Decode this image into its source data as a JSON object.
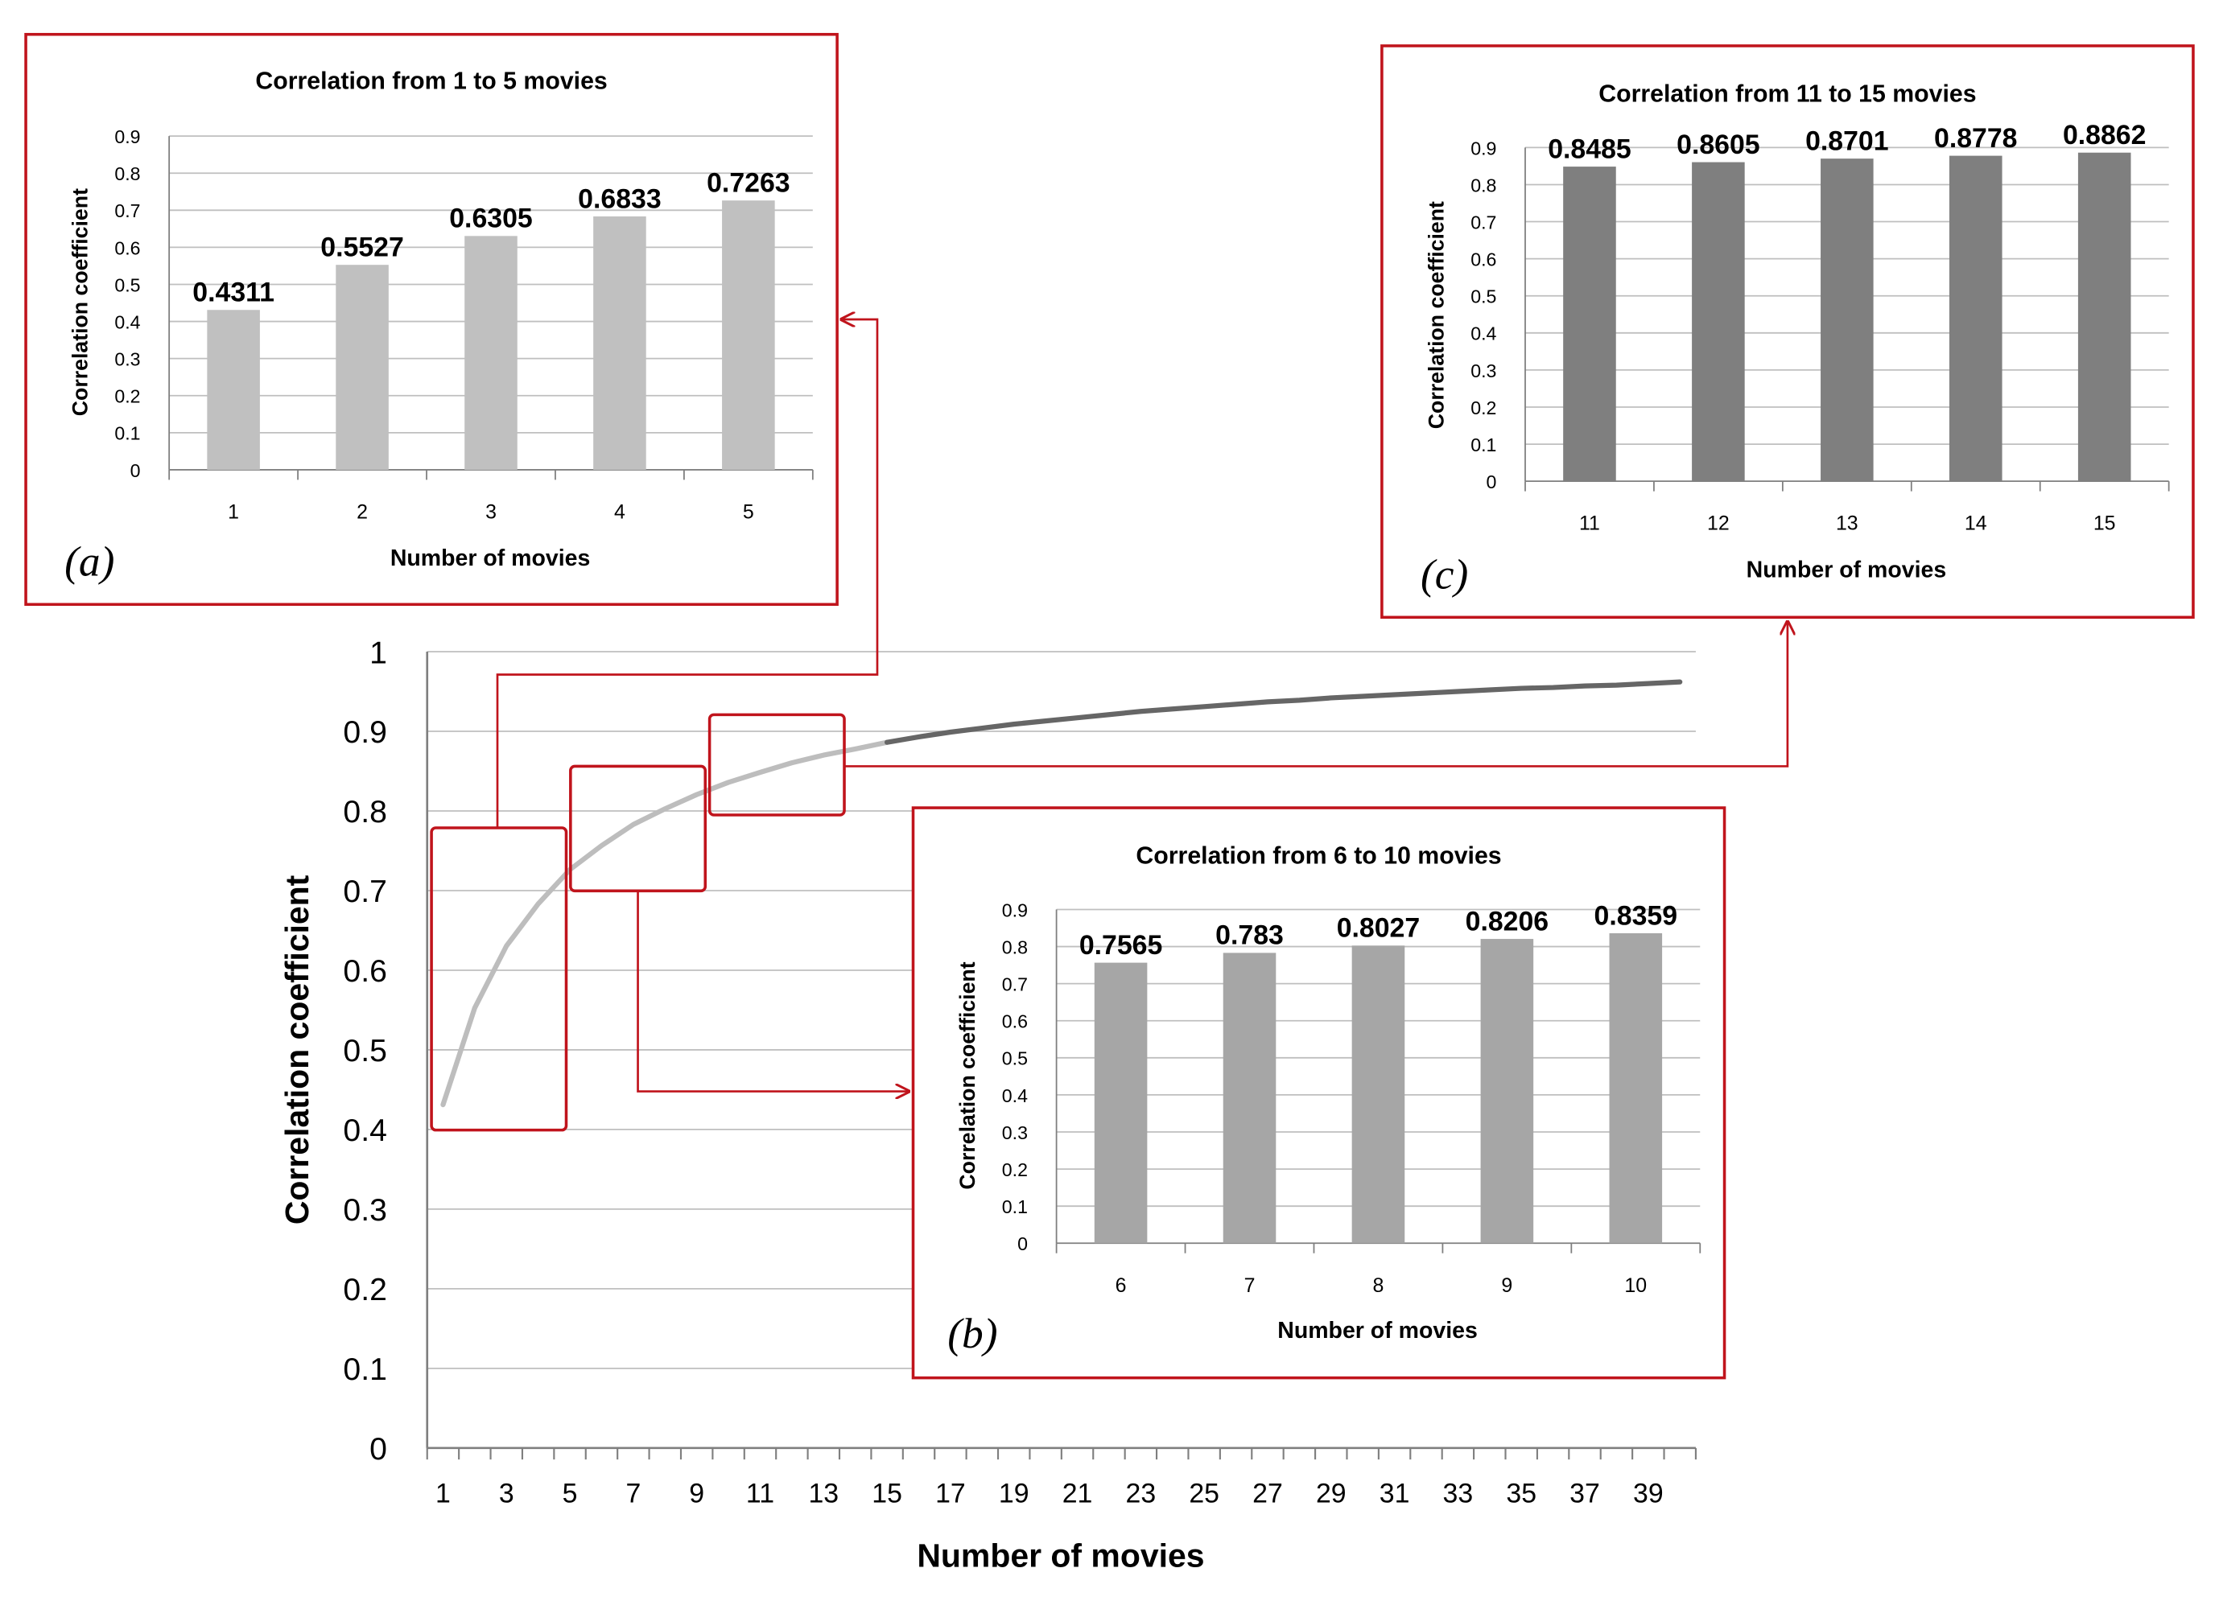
{
  "colors": {
    "frame": "#c0141c",
    "grid": "#bfbfbf",
    "axis": "#7f7f7f",
    "curve_light": "#bdbdbd",
    "curve_dark": "#666666",
    "bar_a": "#c0c0c0",
    "bar_b": "#a6a6a6",
    "bar_c": "#7f7f7f",
    "text": "#000000"
  },
  "chart_data": [
    {
      "id": "main",
      "type": "line",
      "title": "",
      "xlabel": "Number of movies",
      "ylabel": "Correlation coefficient",
      "xlim": [
        1,
        40
      ],
      "ylim": [
        0,
        1
      ],
      "yticks": [
        "0",
        "0.1",
        "0.2",
        "0.3",
        "0.4",
        "0.5",
        "0.6",
        "0.7",
        "0.8",
        "0.9",
        "1"
      ],
      "xtick_labels": [
        "1",
        "3",
        "5",
        "7",
        "9",
        "11",
        "13",
        "15",
        "17",
        "19",
        "21",
        "23",
        "25",
        "27",
        "29",
        "31",
        "33",
        "35",
        "37",
        "39"
      ],
      "series": [
        {
          "name": "Correlation coefficient",
          "x": [
            1,
            2,
            3,
            4,
            5,
            6,
            7,
            8,
            9,
            10,
            11,
            12,
            13,
            14,
            15,
            16,
            17,
            18,
            19,
            20,
            21,
            22,
            23,
            24,
            25,
            26,
            27,
            28,
            29,
            30,
            31,
            32,
            33,
            34,
            35,
            36,
            37,
            38,
            39,
            40
          ],
          "values": [
            0.4311,
            0.5527,
            0.6305,
            0.6833,
            0.7263,
            0.7565,
            0.783,
            0.8027,
            0.8206,
            0.8359,
            0.8485,
            0.8605,
            0.8701,
            0.8778,
            0.8862,
            0.893,
            0.899,
            0.904,
            0.909,
            0.913,
            0.917,
            0.921,
            0.925,
            0.928,
            0.931,
            0.934,
            0.937,
            0.939,
            0.942,
            0.944,
            0.946,
            0.948,
            0.95,
            0.952,
            0.954,
            0.955,
            0.957,
            0.958,
            0.96,
            0.962
          ]
        }
      ]
    },
    {
      "id": "a",
      "type": "bar",
      "panel_label": "(a)",
      "title": "Correlation from 1 to 5 movies",
      "xlabel": "Number of movies",
      "ylabel": "Correlation coefficient",
      "categories": [
        "1",
        "2",
        "3",
        "4",
        "5"
      ],
      "values": [
        0.4311,
        0.5527,
        0.6305,
        0.6833,
        0.7263
      ],
      "data_labels": [
        "0.4311",
        "0.5527",
        "0.6305",
        "0.6833",
        "0.7263"
      ],
      "ylim": [
        0,
        0.9
      ],
      "yticks": [
        "0",
        "0.1",
        "0.2",
        "0.3",
        "0.4",
        "0.5",
        "0.6",
        "0.7",
        "0.8",
        "0.9"
      ]
    },
    {
      "id": "b",
      "type": "bar",
      "panel_label": "(b)",
      "title": "Correlation from 6 to 10 movies",
      "xlabel": "Number of movies",
      "ylabel": "Correlation coefficient",
      "categories": [
        "6",
        "7",
        "8",
        "9",
        "10"
      ],
      "values": [
        0.7565,
        0.783,
        0.8027,
        0.8206,
        0.8359
      ],
      "data_labels": [
        "0.7565",
        "0.783",
        "0.8027",
        "0.8206",
        "0.8359"
      ],
      "ylim": [
        0,
        0.9
      ],
      "yticks": [
        "0",
        "0.1",
        "0.2",
        "0.3",
        "0.4",
        "0.5",
        "0.6",
        "0.7",
        "0.8",
        "0.9"
      ]
    },
    {
      "id": "c",
      "type": "bar",
      "panel_label": "(c)",
      "title": "Correlation from 11 to 15 movies",
      "xlabel": "Number of movies",
      "ylabel": "Correlation coefficient",
      "categories": [
        "11",
        "12",
        "13",
        "14",
        "15"
      ],
      "values": [
        0.8485,
        0.8605,
        0.8701,
        0.8778,
        0.8862
      ],
      "data_labels": [
        "0.8485",
        "0.8605",
        "0.8701",
        "0.8778",
        "0.8862"
      ],
      "ylim": [
        0,
        0.9
      ],
      "yticks": [
        "0",
        "0.1",
        "0.2",
        "0.3",
        "0.4",
        "0.5",
        "0.6",
        "0.7",
        "0.8",
        "0.9"
      ]
    }
  ]
}
